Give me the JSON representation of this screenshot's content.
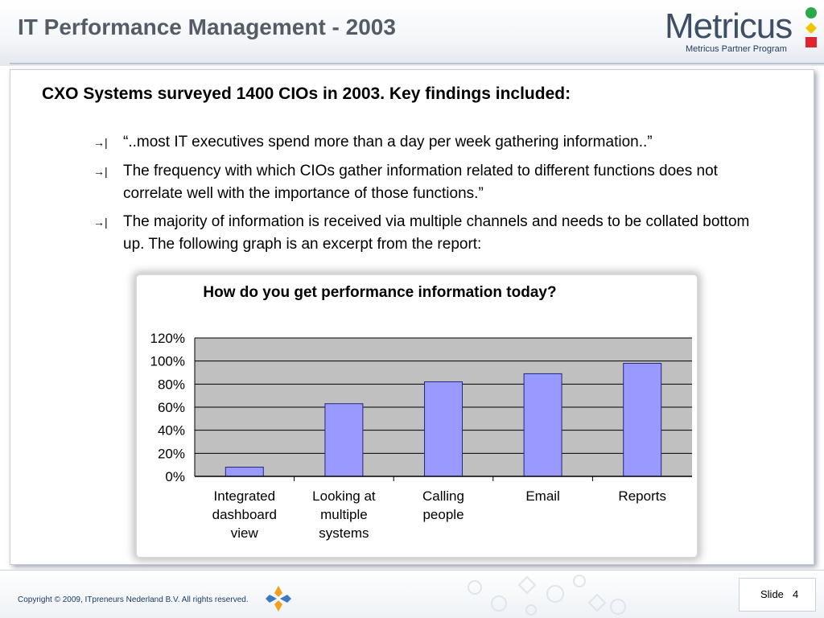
{
  "slide_title": "IT Performance Management - 2003",
  "logo": {
    "wordmark": "Metricus",
    "tagline": "Metricus Partner Program",
    "colors": [
      "#2aa84a",
      "#f2c400",
      "#e0242e"
    ]
  },
  "headline": "CXO Systems surveyed 1400 CIOs in 2003. Key findings included:",
  "bullets": [
    {
      "marker": "→|",
      "text": "“..most IT executives spend more than a day per week gathering information..”"
    },
    {
      "marker": "→|",
      "text": "The frequency with which CIOs gather information related to different functions does not correlate well with the importance of those functions.”"
    },
    {
      "marker": "→|",
      "text": "The majority of information is received via multiple channels and needs to be collated bottom up.  The following graph is an excerpt from the report:"
    }
  ],
  "chart_data": {
    "type": "bar",
    "title": "How do you get performance information today?",
    "categories": [
      [
        "Integrated",
        "dashboard",
        "view"
      ],
      [
        "Looking at",
        "multiple",
        "systems"
      ],
      [
        "Calling",
        "people"
      ],
      [
        "Email"
      ],
      [
        "Reports"
      ]
    ],
    "values": [
      8,
      63,
      82,
      89,
      98
    ],
    "ylim": [
      0,
      120
    ],
    "yticks": [
      0,
      20,
      40,
      60,
      80,
      100,
      120
    ],
    "ytick_suffix": "%",
    "xlabel": "",
    "ylabel": "",
    "grid": true,
    "legend": false,
    "colors": {
      "bar": "#9999ff",
      "bar_edge": "#1f2a7a",
      "plot_bg": "#c0c0c0",
      "grid": "#000000"
    }
  },
  "footer": {
    "copyright": "Copyright © 2009, ITpreneurs Nederland B.V. All rights reserved.",
    "slide_label": "Slide",
    "slide_number": "4"
  }
}
